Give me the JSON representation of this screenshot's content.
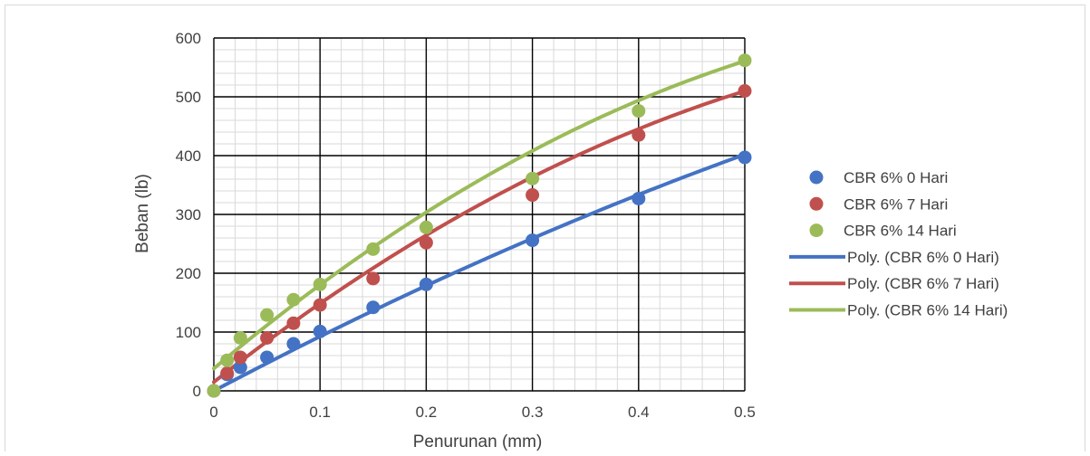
{
  "chart_data": {
    "type": "scatter",
    "xlabel": "Penurunan (mm)",
    "ylabel": "Beban (lb)",
    "xlim": [
      0,
      0.5
    ],
    "ylim": [
      0,
      600
    ],
    "x_ticks": [
      0,
      0.1,
      0.2,
      0.3,
      0.4,
      0.5
    ],
    "x_tick_labels": [
      "0",
      "0.1",
      "0.2",
      "0.3",
      "0.4",
      "0.5"
    ],
    "y_ticks": [
      0,
      100,
      200,
      300,
      400,
      500,
      600
    ],
    "y_tick_labels": [
      "0",
      "100",
      "200",
      "300",
      "400",
      "500",
      "600"
    ],
    "grid": "major and minor",
    "legend_position": "right",
    "series": [
      {
        "name": "CBR 6% 0 Hari",
        "kind": "marker",
        "color": "#4472C4",
        "x": [
          0,
          0.0125,
          0.025,
          0.05,
          0.075,
          0.1,
          0.15,
          0.2,
          0.3,
          0.4,
          0.5
        ],
        "y": [
          0,
          28,
          40,
          57,
          80,
          101,
          142,
          181,
          256,
          327,
          397
        ]
      },
      {
        "name": "CBR 6% 7 Hari",
        "kind": "marker",
        "color": "#C0504D",
        "x": [
          0,
          0.0125,
          0.025,
          0.05,
          0.075,
          0.1,
          0.15,
          0.2,
          0.3,
          0.4,
          0.5
        ],
        "y": [
          0,
          30,
          57,
          90,
          115,
          146,
          191,
          252,
          333,
          435,
          510
        ]
      },
      {
        "name": "CBR 6% 14 Hari",
        "kind": "marker",
        "color": "#9BBB59",
        "x": [
          0,
          0.0125,
          0.025,
          0.05,
          0.075,
          0.1,
          0.15,
          0.2,
          0.3,
          0.4,
          0.5
        ],
        "y": [
          0,
          52,
          90,
          129,
          155,
          181,
          241,
          278,
          361,
          476,
          562
        ]
      },
      {
        "name": "Poly. (CBR 6% 0 Hari)",
        "kind": "trendline",
        "color": "#4472C4",
        "coefficients": [
          0,
          954,
          -300
        ]
      },
      {
        "name": "Poly. (CBR 6% 7 Hari)",
        "kind": "trendline",
        "color": "#C0504D",
        "coefficients": [
          15,
          1421,
          -863
        ]
      },
      {
        "name": "Poly. (CBR 6% 14 Hari)",
        "kind": "trendline",
        "color": "#9BBB59",
        "coefficients": [
          38,
          1516,
          -941
        ]
      }
    ]
  }
}
